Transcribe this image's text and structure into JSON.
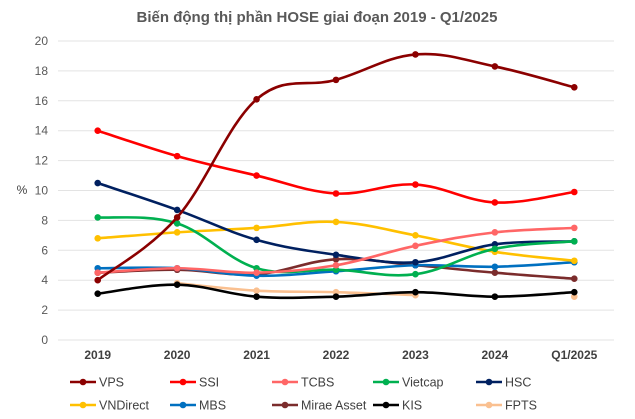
{
  "chart_data": {
    "type": "line",
    "title": "Biến động thị phần HOSE giai đoạn 2019 - Q1/2025",
    "ylabel": "%",
    "xlabel": "",
    "x": [
      "2019",
      "2020",
      "2021",
      "2022",
      "2023",
      "2024",
      "Q1/2025"
    ],
    "ylim": [
      0,
      20
    ],
    "yticks": [
      0,
      2,
      4,
      6,
      8,
      10,
      12,
      14,
      16,
      18,
      20
    ],
    "grid": true,
    "legend_position": "bottom",
    "series": [
      {
        "name": "VPS",
        "color": "#8b0000",
        "values": [
          4.0,
          8.2,
          16.1,
          17.4,
          19.1,
          18.3,
          16.9
        ]
      },
      {
        "name": "SSI",
        "color": "#ff0000",
        "values": [
          14.0,
          12.3,
          11.0,
          9.8,
          10.4,
          9.2,
          9.9
        ]
      },
      {
        "name": "TCBS",
        "color": "#ff6666",
        "values": [
          4.5,
          4.8,
          4.5,
          5.0,
          6.3,
          7.2,
          7.5
        ]
      },
      {
        "name": "Vietcap",
        "color": "#00b050",
        "values": [
          8.2,
          7.8,
          4.8,
          4.7,
          4.4,
          6.1,
          6.6
        ]
      },
      {
        "name": "HSC",
        "color": "#002060",
        "values": [
          10.5,
          8.7,
          6.7,
          5.7,
          5.2,
          6.4,
          6.6
        ]
      },
      {
        "name": "VNDirect",
        "color": "#ffc000",
        "values": [
          6.8,
          7.2,
          7.5,
          7.9,
          7.0,
          5.9,
          5.3
        ]
      },
      {
        "name": "MBS",
        "color": "#0070c0",
        "values": [
          4.8,
          4.8,
          4.3,
          4.6,
          5.0,
          4.9,
          5.2
        ]
      },
      {
        "name": "Mirae Asset",
        "color": "#7b2c2c",
        "values": [
          4.5,
          4.7,
          4.4,
          5.4,
          5.0,
          4.5,
          4.1
        ]
      },
      {
        "name": "KIS",
        "color": "#000000",
        "values": [
          3.1,
          3.7,
          2.9,
          2.9,
          3.2,
          2.9,
          3.2
        ]
      },
      {
        "name": "FPTS",
        "color": "#fac090",
        "values": [
          null,
          3.8,
          3.3,
          3.2,
          3.0,
          null,
          2.9
        ]
      }
    ]
  }
}
